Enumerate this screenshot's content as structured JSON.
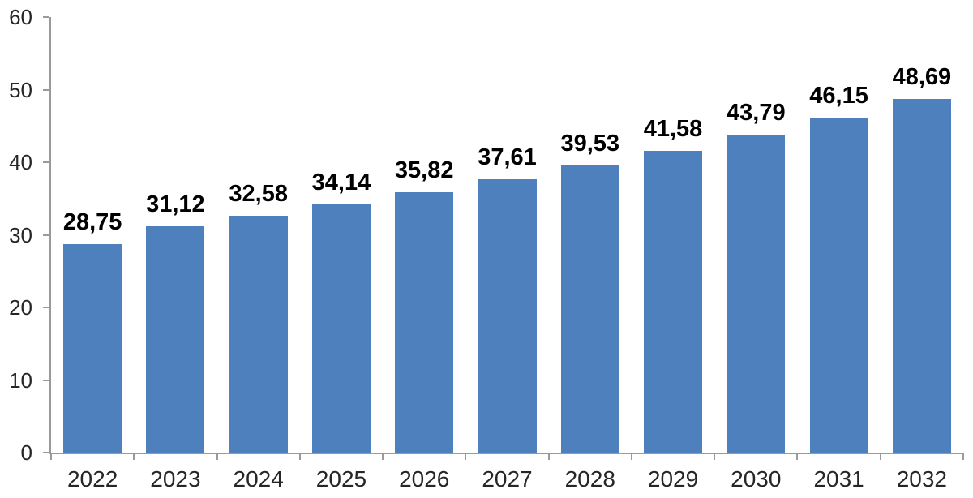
{
  "chart_data": {
    "type": "bar",
    "categories": [
      "2022",
      "2023",
      "2024",
      "2025",
      "2026",
      "2027",
      "2028",
      "2029",
      "2030",
      "2031",
      "2032"
    ],
    "values": [
      28.75,
      31.12,
      32.58,
      34.14,
      35.82,
      37.61,
      39.53,
      41.58,
      43.79,
      46.15,
      48.69
    ],
    "value_labels": [
      "28,75",
      "31,12",
      "32,58",
      "34,14",
      "35,82",
      "37,61",
      "39,53",
      "41,58",
      "43,79",
      "46,15",
      "48,69"
    ],
    "ylim": [
      0,
      60
    ],
    "yticks": [
      0,
      10,
      20,
      30,
      40,
      50,
      60
    ],
    "ytick_labels": [
      "0",
      "10",
      "20",
      "30",
      "40",
      "50",
      "60"
    ],
    "grid": false,
    "legend": false,
    "decimal_separator": ",",
    "colors": {
      "bar": "#4E80BE",
      "axis": "#9A9A9A",
      "value_label": "#000000",
      "tick_label": "#262626",
      "background": "#FFFFFF"
    }
  }
}
